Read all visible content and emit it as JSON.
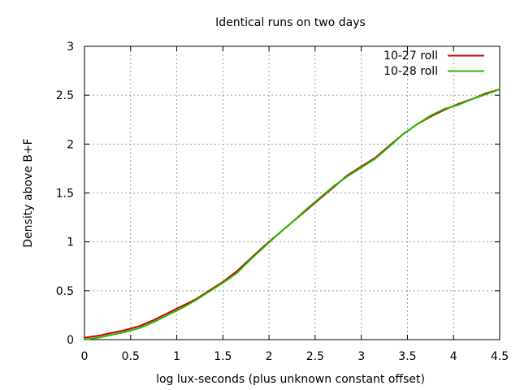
{
  "chart_data": {
    "type": "line",
    "title": "Identical runs on two days",
    "xlabel": "log lux-seconds (plus unknown constant offset)",
    "ylabel": "Density above B+F",
    "xlim": [
      0,
      4.5
    ],
    "ylim": [
      0,
      3
    ],
    "xticks": [
      0,
      0.5,
      1,
      1.5,
      2,
      2.5,
      3,
      3.5,
      4,
      4.5
    ],
    "xtick_labels": [
      "0",
      "0.5",
      "1",
      "1.5",
      "2",
      "2.5",
      "3",
      "3.5",
      "4",
      "4.5"
    ],
    "yticks": [
      0,
      0.5,
      1,
      1.5,
      2,
      2.5,
      3
    ],
    "ytick_labels": [
      "0",
      "0.5",
      "1",
      "1.5",
      "2",
      "2.5",
      "3"
    ],
    "grid": true,
    "legend_position": "top-right",
    "series": [
      {
        "name": "10-27 roll",
        "color": "#cc0000",
        "x": [
          0,
          0.15,
          0.3,
          0.45,
          0.6,
          0.75,
          0.9,
          1.05,
          1.2,
          1.35,
          1.5,
          1.65,
          1.8,
          1.95,
          2.1,
          2.25,
          2.4,
          2.55,
          2.7,
          2.85,
          3.0,
          3.15,
          3.3,
          3.45,
          3.6,
          3.75,
          3.9,
          4.05,
          4.2,
          4.35,
          4.5
        ],
        "y": [
          0.02,
          0.04,
          0.07,
          0.1,
          0.14,
          0.2,
          0.27,
          0.34,
          0.41,
          0.5,
          0.59,
          0.7,
          0.83,
          0.96,
          1.08,
          1.2,
          1.32,
          1.44,
          1.56,
          1.68,
          1.77,
          1.86,
          1.98,
          2.1,
          2.2,
          2.28,
          2.35,
          2.41,
          2.46,
          2.52,
          2.56
        ]
      },
      {
        "name": "10-28 roll",
        "color": "#22bb00",
        "x": [
          0,
          0.15,
          0.3,
          0.45,
          0.6,
          0.75,
          0.9,
          1.05,
          1.2,
          1.35,
          1.5,
          1.65,
          1.8,
          1.95,
          2.1,
          2.25,
          2.4,
          2.55,
          2.7,
          2.85,
          3.0,
          3.15,
          3.3,
          3.45,
          3.6,
          3.75,
          3.9,
          4.05,
          4.2,
          4.35,
          4.5
        ],
        "y": [
          0.0,
          0.02,
          0.05,
          0.08,
          0.12,
          0.18,
          0.25,
          0.32,
          0.4,
          0.49,
          0.58,
          0.68,
          0.82,
          0.95,
          1.08,
          1.2,
          1.33,
          1.45,
          1.57,
          1.67,
          1.76,
          1.85,
          1.97,
          2.1,
          2.2,
          2.29,
          2.36,
          2.4,
          2.46,
          2.51,
          2.56
        ]
      }
    ]
  }
}
